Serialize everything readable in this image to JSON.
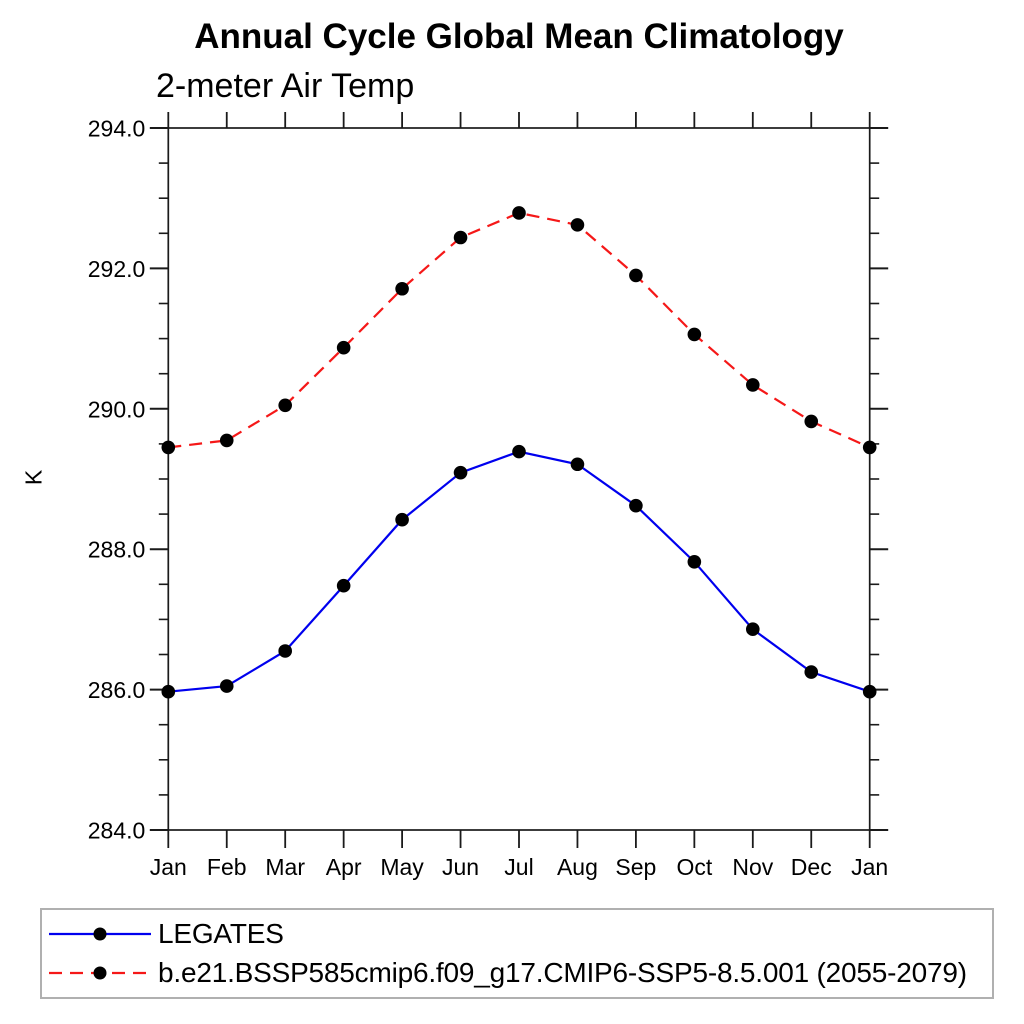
{
  "chart_data": {
    "type": "line",
    "title": "Annual Cycle Global Mean Climatology",
    "subtitle": "2-meter Air Temp",
    "ylabel": "K",
    "xlabel": "",
    "x_tick_labels": [
      "Jan",
      "Feb",
      "Mar",
      "Apr",
      "May",
      "Jun",
      "Jul",
      "Aug",
      "Sep",
      "Oct",
      "Nov",
      "Dec",
      "Jan"
    ],
    "y_tick_labels": [
      "294.0",
      "292.0",
      "290.0",
      "288.0",
      "286.0",
      "284.0"
    ],
    "ylim": [
      284.0,
      294.0
    ],
    "y_major_step": 2.0,
    "y_minor_step": 0.5,
    "grid": false,
    "legend_position": "bottom-box",
    "marker": "filled-circle",
    "marker_color": "#000000",
    "axis_color": "#1a1a1a",
    "series": [
      {
        "name": "LEGATES",
        "color": "#0000ee",
        "style": "solid",
        "values": [
          285.97,
          286.05,
          286.55,
          287.48,
          288.42,
          289.09,
          289.39,
          289.21,
          288.62,
          287.82,
          286.86,
          286.25,
          285.97
        ]
      },
      {
        "name": "b.e21.BSSP585cmip6.f09_g17.CMIP6-SSP5-8.5.001 (2055-2079)",
        "color": "#f51818",
        "style": "dashed",
        "values": [
          289.45,
          289.55,
          290.05,
          290.87,
          291.71,
          292.44,
          292.79,
          292.62,
          291.9,
          291.06,
          290.34,
          289.82,
          289.45
        ]
      }
    ]
  }
}
